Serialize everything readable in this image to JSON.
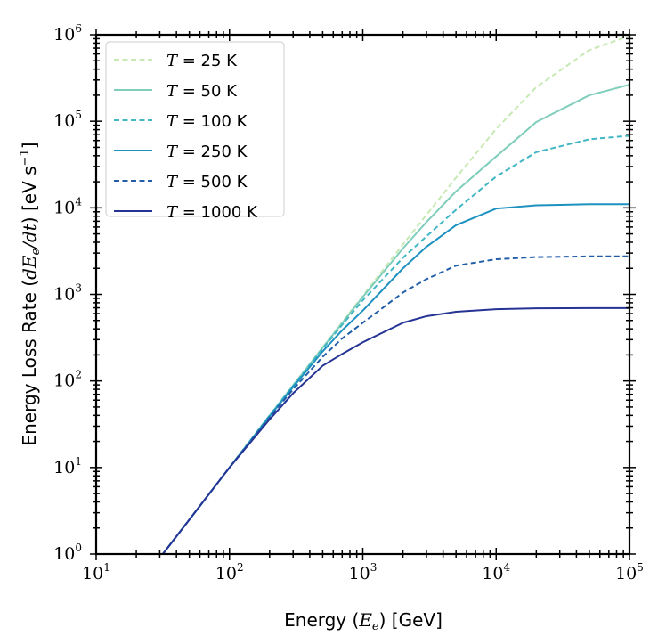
{
  "chart_data": {
    "type": "line",
    "title": "",
    "xlabel": {
      "prefix": "Energy (",
      "var": "E",
      "sub": "e",
      "suffix": ") [GeV]"
    },
    "ylabel": {
      "prefix": "Energy Loss Rate (",
      "var": "dE",
      "sub": "e",
      "mid": "/dt",
      "suffix": ") [eV s",
      "sup": "−1",
      "end": "]"
    },
    "xscale": "log",
    "yscale": "log",
    "xlim": [
      10,
      100000
    ],
    "ylim": [
      1,
      1000000
    ],
    "x_ticks": [
      {
        "base": "10",
        "exp": "1",
        "value": 10
      },
      {
        "base": "10",
        "exp": "2",
        "value": 100
      },
      {
        "base": "10",
        "exp": "3",
        "value": 1000
      },
      {
        "base": "10",
        "exp": "4",
        "value": 10000
      },
      {
        "base": "10",
        "exp": "5",
        "value": 100000
      }
    ],
    "y_ticks": [
      {
        "base": "10",
        "exp": "0",
        "value": 1
      },
      {
        "base": "10",
        "exp": "1",
        "value": 10
      },
      {
        "base": "10",
        "exp": "2",
        "value": 100
      },
      {
        "base": "10",
        "exp": "3",
        "value": 1000
      },
      {
        "base": "10",
        "exp": "4",
        "value": 10000
      },
      {
        "base": "10",
        "exp": "5",
        "value": 100000
      },
      {
        "base": "10",
        "exp": "6",
        "value": 1000000
      }
    ],
    "legend": {
      "position": "top-left",
      "var": "T"
    },
    "x": [
      31.6,
      50,
      100,
      200,
      300,
      500,
      700,
      1000,
      2000,
      3000,
      5000,
      10000,
      20000,
      50000,
      100000
    ],
    "series": [
      {
        "name": "25 K",
        "label_suffix": " = 25 K",
        "color": "#c7e9b4",
        "dash": "dashed",
        "values": [
          1,
          2.5,
          10,
          40,
          89,
          245,
          477,
          967,
          3780,
          8290,
          22300,
          81600,
          248000,
          666000,
          970000
        ]
      },
      {
        "name": "50 K",
        "label_suffix": " = 50 K",
        "color": "#7fcdbb",
        "dash": "solid",
        "values": [
          1,
          2.5,
          10,
          40,
          89,
          243,
          466,
          935,
          3400,
          6850,
          15500,
          39200,
          98000,
          200000,
          265000
        ]
      },
      {
        "name": "100 K",
        "label_suffix": " = 100 K",
        "color": "#41b6c4",
        "dash": "dashed",
        "values": [
          1,
          2.5,
          10,
          40,
          88,
          236,
          445,
          855,
          2650,
          4680,
          9500,
          23000,
          44000,
          62000,
          68000
        ]
      },
      {
        "name": "250 K",
        "label_suffix": " = 250 K",
        "color": "#1d91c0",
        "dash": "solid",
        "values": [
          1,
          2.5,
          10,
          39,
          85,
          220,
          385,
          650,
          2000,
          3550,
          6300,
          9800,
          10700,
          11000,
          11000
        ]
      },
      {
        "name": "500 K",
        "label_suffix": " = 500 K",
        "color": "#225ea8",
        "dash": "dashed",
        "values": [
          1,
          2.5,
          10,
          38,
          80,
          190,
          310,
          470,
          1050,
          1500,
          2150,
          2550,
          2700,
          2750,
          2750
        ]
      },
      {
        "name": "1000 K",
        "label_suffix": " = 1000 K",
        "color": "#253494",
        "dash": "solid",
        "values": [
          1,
          2.5,
          10,
          36,
          72,
          150,
          205,
          280,
          470,
          560,
          630,
          675,
          690,
          695,
          695
        ]
      }
    ]
  }
}
